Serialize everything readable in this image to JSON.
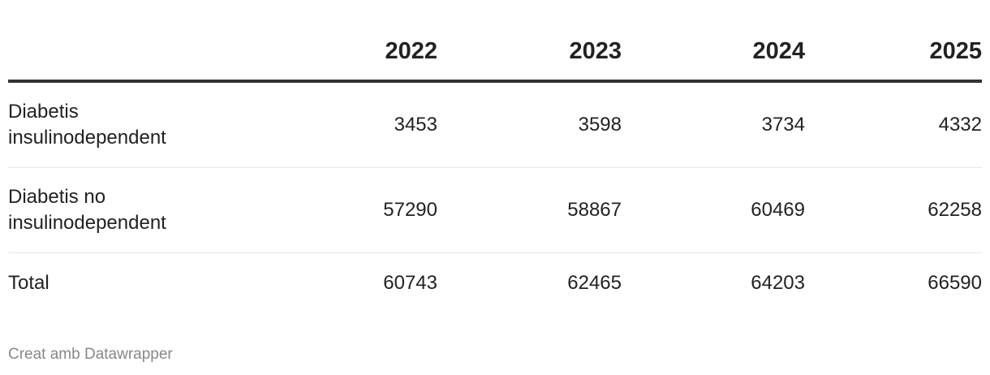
{
  "chart_data": {
    "type": "table",
    "columns": [
      "",
      "2022",
      "2023",
      "2024",
      "2025"
    ],
    "rows": [
      {
        "label": "Diabetis insulinodependent",
        "values": [
          "3453",
          "3598",
          "3734",
          "4332"
        ]
      },
      {
        "label": "Diabetis no insulinodependent",
        "values": [
          "57290",
          "58867",
          "60469",
          "62258"
        ]
      },
      {
        "label": "Total",
        "values": [
          "60743",
          "62465",
          "64203",
          "66590"
        ]
      }
    ]
  },
  "footer": {
    "credit": "Creat amb Datawrapper"
  },
  "colors": {
    "text": "#222222",
    "header_rule": "#333333",
    "row_rule": "#e6e6e6",
    "footer": "#888888"
  }
}
